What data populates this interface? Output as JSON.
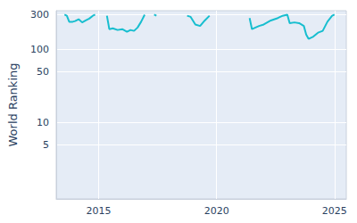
{
  "chart_data": {
    "type": "line",
    "ylabel": "World Ranking",
    "log": "y",
    "grid": true,
    "color": "#17becf",
    "x": [
      2013.55,
      2013.65,
      2013.75,
      2013.9,
      2014.0,
      2014.15,
      2014.3,
      2014.45,
      2014.6,
      2014.75,
      2014.85,
      2015.1,
      2015.35,
      2015.45,
      2015.6,
      2015.8,
      2016.0,
      2016.2,
      2016.35,
      2016.5,
      2016.65,
      2016.8,
      2016.95,
      2017.2,
      2017.35,
      2017.45,
      2018.3,
      2018.75,
      2018.9,
      2019.1,
      2019.3,
      2019.5,
      2019.7,
      2020.5,
      2021.4,
      2021.5,
      2021.8,
      2022.0,
      2022.3,
      2022.6,
      2022.8,
      2023.0,
      2023.1,
      2023.3,
      2023.5,
      2023.7,
      2023.8,
      2023.9,
      2024.1,
      2024.3,
      2024.5,
      2024.7,
      2024.9,
      2025.0
    ],
    "values": [
      300,
      290,
      240,
      240,
      245,
      260,
      235,
      250,
      265,
      290,
      300,
      null,
      290,
      190,
      195,
      185,
      190,
      175,
      185,
      180,
      200,
      240,
      300,
      null,
      300,
      290,
      null,
      290,
      280,
      220,
      210,
      250,
      290,
      null,
      270,
      190,
      210,
      220,
      250,
      270,
      290,
      300,
      230,
      235,
      230,
      210,
      160,
      140,
      150,
      170,
      180,
      240,
      290,
      300
    ],
    "xlim": [
      2013.2,
      2025.5
    ],
    "xticks": [
      2015,
      2020,
      2025
    ],
    "ylim": [
      0.9,
      340
    ],
    "yticks": [
      5,
      10,
      50,
      100,
      300
    ]
  }
}
